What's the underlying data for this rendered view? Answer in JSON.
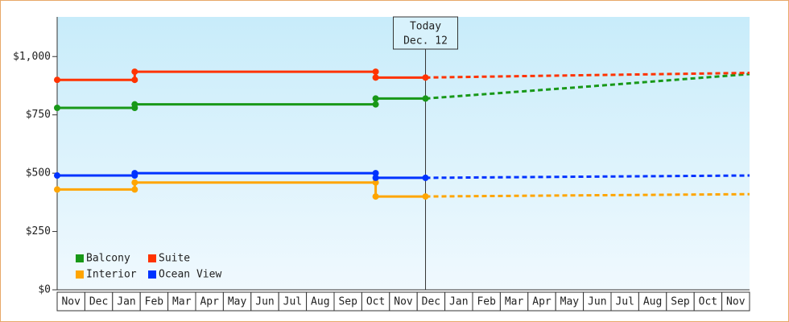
{
  "chart_data": {
    "type": "line",
    "ylim": [
      0,
      1170
    ],
    "yticks": [
      {
        "value": 0,
        "label": "$0"
      },
      {
        "value": 250,
        "label": "$250"
      },
      {
        "value": 500,
        "label": "$500"
      },
      {
        "value": 750,
        "label": "$750"
      },
      {
        "value": 1000,
        "label": "$1,000"
      }
    ],
    "xlim": [
      0,
      25
    ],
    "xticks": [
      {
        "value": 0.5,
        "label": "Nov"
      },
      {
        "value": 1.5,
        "label": "Dec"
      },
      {
        "value": 2.5,
        "label": "Jan"
      },
      {
        "value": 3.5,
        "label": "Feb"
      },
      {
        "value": 4.5,
        "label": "Mar"
      },
      {
        "value": 5.5,
        "label": "Apr"
      },
      {
        "value": 6.5,
        "label": "May"
      },
      {
        "value": 7.5,
        "label": "Jun"
      },
      {
        "value": 8.5,
        "label": "Jul"
      },
      {
        "value": 9.5,
        "label": "Aug"
      },
      {
        "value": 10.5,
        "label": "Sep"
      },
      {
        "value": 11.5,
        "label": "Oct"
      },
      {
        "value": 12.5,
        "label": "Nov"
      },
      {
        "value": 13.5,
        "label": "Dec"
      },
      {
        "value": 14.5,
        "label": "Jan"
      },
      {
        "value": 15.5,
        "label": "Feb"
      },
      {
        "value": 16.5,
        "label": "Mar"
      },
      {
        "value": 17.5,
        "label": "Apr"
      },
      {
        "value": 18.5,
        "label": "May"
      },
      {
        "value": 19.5,
        "label": "Jun"
      },
      {
        "value": 20.5,
        "label": "Jul"
      },
      {
        "value": 21.5,
        "label": "Aug"
      },
      {
        "value": 22.5,
        "label": "Sep"
      },
      {
        "value": 23.5,
        "label": "Oct"
      },
      {
        "value": 24.5,
        "label": "Nov"
      }
    ],
    "annotation": {
      "x": 13.3,
      "lines": [
        "Today",
        "Dec. 12"
      ]
    },
    "legend": "lower left",
    "series": [
      {
        "name": "Balcony",
        "color": "#189818",
        "x": [
          0,
          2.8,
          2.8,
          11.5,
          11.5,
          13.3
        ],
        "values": [
          780,
          780,
          795,
          795,
          820,
          820
        ],
        "projection": {
          "x": [
            13.3,
            19,
            25
          ],
          "values": [
            820,
            870,
            925
          ]
        }
      },
      {
        "name": "Suite",
        "color": "#ff3300",
        "x": [
          0,
          2.8,
          2.8,
          11.5,
          11.5,
          13.3
        ],
        "values": [
          900,
          900,
          935,
          935,
          910,
          910
        ],
        "projection": {
          "x": [
            13.3,
            19,
            25
          ],
          "values": [
            910,
            920,
            930
          ]
        }
      },
      {
        "name": "Interior",
        "color": "#ffa500",
        "x": [
          0,
          2.8,
          2.8,
          11.5,
          11.5,
          13.3
        ],
        "values": [
          430,
          430,
          460,
          460,
          400,
          400
        ],
        "projection": {
          "x": [
            13.3,
            19,
            25
          ],
          "values": [
            400,
            405,
            410
          ]
        }
      },
      {
        "name": "Ocean View",
        "color": "#0033ff",
        "x": [
          0,
          2.8,
          2.8,
          11.5,
          11.5,
          13.3
        ],
        "values": [
          490,
          490,
          500,
          500,
          480,
          480
        ],
        "projection": {
          "x": [
            13.3,
            19,
            25
          ],
          "values": [
            480,
            485,
            490
          ]
        }
      }
    ]
  }
}
